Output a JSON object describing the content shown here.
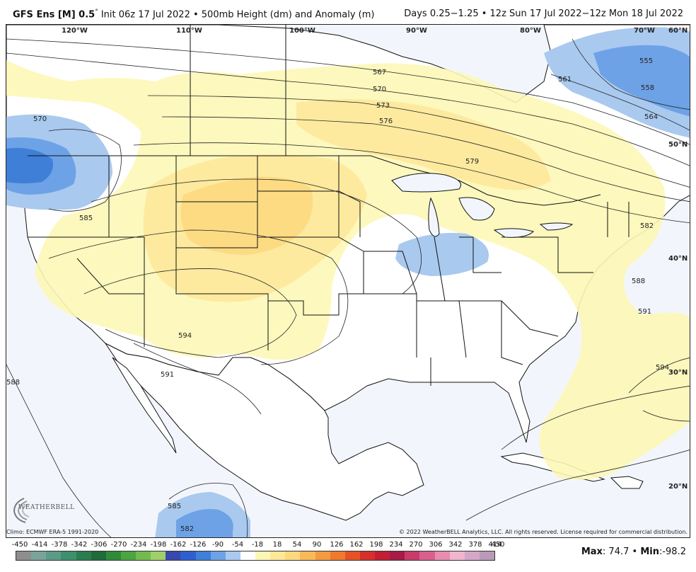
{
  "header": {
    "model": "GFS Ens [M] 0.5",
    "degree": "°",
    "init": " Init 06z 17 Jul 2022 • 500mb Height (dm) and Anomaly (m)",
    "valid": "Days 0.25−1.25 • 12z Sun 17 Jul 2022−12z Mon 18 Jul 2022"
  },
  "map": {
    "longitude_labels": [
      "120°W",
      "110°W",
      "100°W",
      "90°W",
      "80°W",
      "70°W",
      "60°N"
    ],
    "latitude_labels": [
      "50°N",
      "40°N",
      "30°N",
      "20°N"
    ],
    "contour_labels": [
      "567",
      "570",
      "573",
      "576",
      "579",
      "561",
      "555",
      "558",
      "564",
      "570",
      "585",
      "582",
      "588",
      "591",
      "594",
      "594",
      "591",
      "588",
      "585",
      "582"
    ],
    "colors": {
      "ocean": "#f2f6fc",
      "land": "#ffffff",
      "pos_weak": "#fdf7b6",
      "pos_mod": "#fde89a",
      "pos_strong": "#fcd97f",
      "neg_weak": "#a9c9ef",
      "neg_mod": "#6ea2e6",
      "neg_strong": "#3f7fd8",
      "border": "#111111",
      "contour": "#222222"
    }
  },
  "footer": {
    "climo": "Climo: ECMWF ERA-5 1991-2020",
    "copyright": "© 2022 WeatherBELL Analytics, LLC. All rights reserved. License required for commercial distribution.",
    "logo_text": "WEATHERBELL",
    "max_label": "Max",
    "max_value": ": 74.7 • ",
    "min_label": "Min",
    "min_value": ":-98.2"
  },
  "colorbar": {
    "ticks": [
      "-450",
      "-414",
      "-378",
      "-342",
      "-306",
      "-270",
      "-234",
      "-198",
      "-162",
      "-126",
      "-90",
      "-54",
      "-18",
      "18",
      "54",
      "90",
      "126",
      "162",
      "198",
      "234",
      "270",
      "306",
      "342",
      "378",
      "414",
      "450"
    ],
    "colors": [
      "#8e8e8e",
      "#7aa39a",
      "#5b9b87",
      "#3f8f6d",
      "#2a7d4f",
      "#1f6b3a",
      "#2e8b3a",
      "#4aa542",
      "#73bb4e",
      "#9fd06a",
      "#3949ab",
      "#2f5fcf",
      "#3f7fd8",
      "#6ea2e6",
      "#a9c9ef",
      "#ffffff",
      "#fdf7b6",
      "#fde89a",
      "#fcd97f",
      "#f9b95a",
      "#f49a3f",
      "#ee7a2e",
      "#e55226",
      "#d6302a",
      "#c21f35",
      "#a61c46",
      "#c83c6a",
      "#d9608d",
      "#e68db0",
      "#efb6cc",
      "#d4a6c8",
      "#b99ab8"
    ]
  }
}
